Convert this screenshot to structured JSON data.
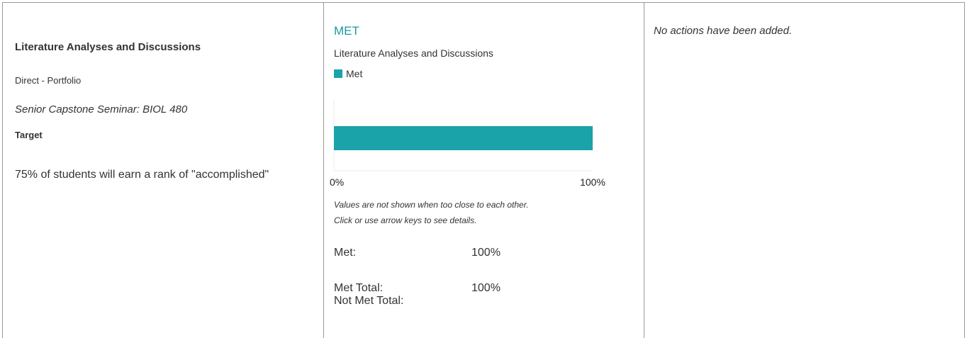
{
  "left": {
    "title": "Literature Analyses and Discussions",
    "method": "Direct - Portfolio",
    "course": "Senior Capstone Seminar: BIOL 480",
    "target_label": "Target",
    "target_text": "75% of students will earn a rank of \"accomplished\""
  },
  "chart_data": {
    "type": "bar",
    "orientation": "horizontal",
    "status": "MET",
    "title": "Literature Analyses and Discussions",
    "categories": [
      null
    ],
    "series": [
      {
        "name": "Met",
        "color": "#1aa3a8",
        "values": [
          100
        ]
      }
    ],
    "xlim": [
      0,
      100
    ],
    "xticks": [
      {
        "value": 0,
        "label": "0%"
      },
      {
        "value": 100,
        "label": "100%"
      }
    ],
    "notes": [
      "Values are not shown when too close to each other.",
      "Click or use arrow keys to see details."
    ]
  },
  "summary": [
    {
      "label": "Met:",
      "value": "100%"
    },
    {
      "label": "Met Total:",
      "value": "100%"
    },
    {
      "label": "Not Met Total:"
    }
  ],
  "right": {
    "message": "No actions have been added."
  }
}
